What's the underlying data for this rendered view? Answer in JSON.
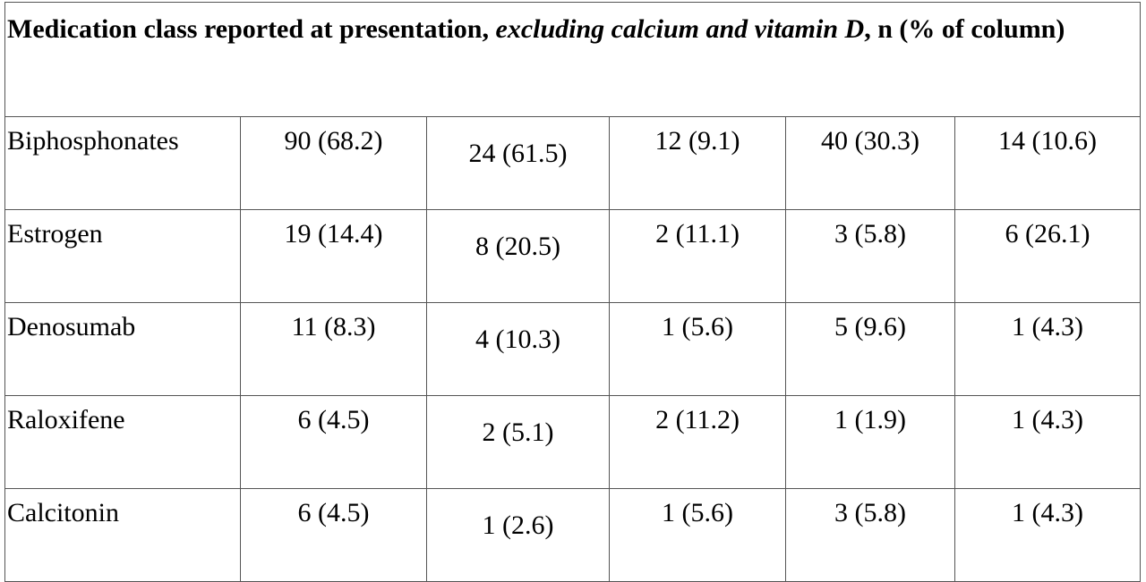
{
  "header": {
    "title_parts": [
      "Medication class reported at presentation,",
      "excluding calcium and vitamin D",
      ", n (% of column)"
    ]
  },
  "table": {
    "rows": [
      [
        "Biphosphonates",
        "90 (68.2)",
        "24 (61.5)",
        "12 (9.1)",
        "40 (30.3)",
        "14 (10.6)"
      ],
      [
        "Estrogen",
        "19 (14.4)",
        "8 (20.5)",
        "2 (11.1)",
        "3 (5.8)",
        "6 (26.1)"
      ],
      [
        "Denosumab",
        "11 (8.3)",
        "4 (10.3)",
        "1 (5.6)",
        "5 (9.6)",
        "1 (4.3)"
      ],
      [
        "Raloxifene",
        "6 (4.5)",
        "2 (5.1)",
        "2 (11.2)",
        "1 (1.9)",
        "1 (4.3)"
      ],
      [
        "Calcitonin",
        "6 (4.5)",
        "1 (2.6)",
        "1 (5.6)",
        "3 (5.8)",
        "1 (4.3)"
      ]
    ]
  }
}
